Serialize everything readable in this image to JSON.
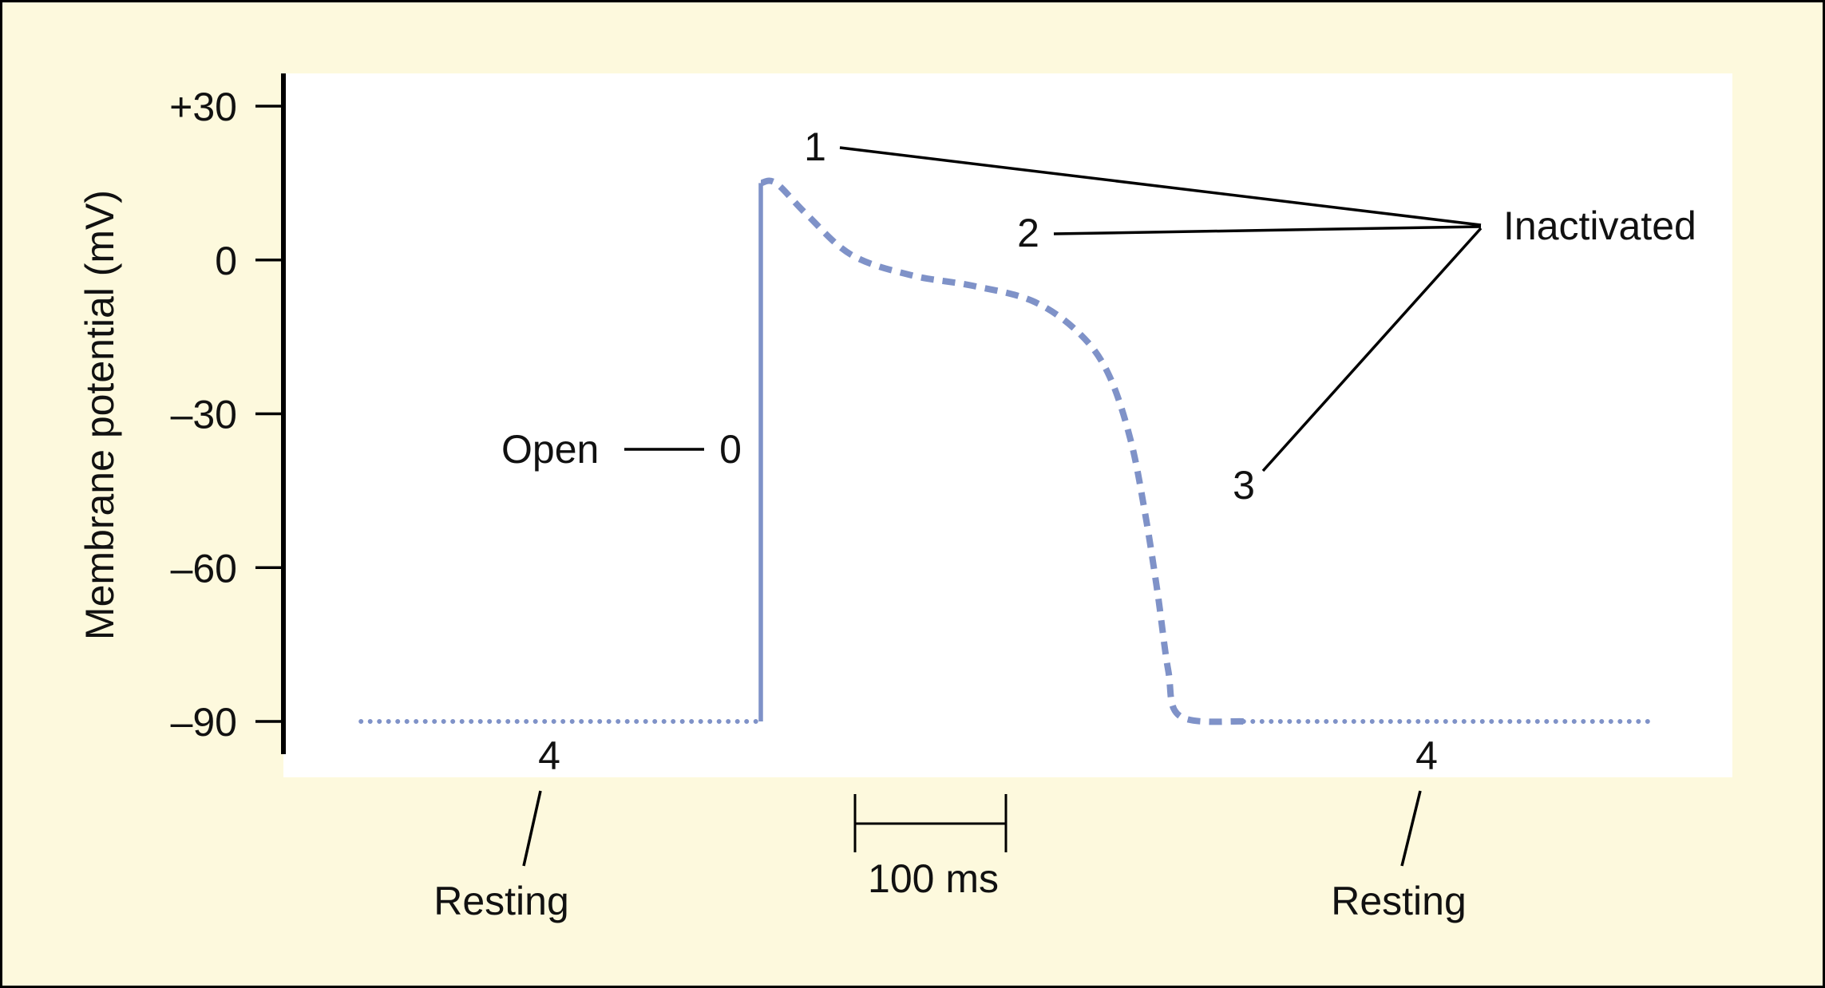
{
  "colors": {
    "background": "#fdf9dd",
    "border": "#000000",
    "plot_area": "#ffffff",
    "trace": "#7f92c8",
    "text": "#111111"
  },
  "chart_data": {
    "type": "line",
    "ylabel": "Membrane potential (mV)",
    "ylim": [
      -100,
      35
    ],
    "y_ticks": [
      "+30",
      "0",
      "–30",
      "–60",
      "–90"
    ],
    "y_tick_values": [
      30,
      0,
      -30,
      -60,
      -90
    ],
    "x_unit": "ms",
    "scale_bar": {
      "label": "100 ms",
      "duration_ms": 100
    },
    "segments": [
      {
        "phase": "4",
        "state": "Resting",
        "style": "dotted",
        "points": [
          [
            -265,
            -90
          ],
          [
            0,
            -90
          ]
        ]
      },
      {
        "phase": "0",
        "state": "Open",
        "style": "solid",
        "points": [
          [
            0,
            -90
          ],
          [
            0,
            15
          ]
        ]
      },
      {
        "phase": "1-2-3",
        "state": "Inactivated",
        "style": "dashed",
        "points": [
          [
            0,
            15
          ],
          [
            10,
            15
          ],
          [
            30,
            9
          ],
          [
            60,
            1
          ],
          [
            100,
            -3
          ],
          [
            140,
            -5
          ],
          [
            180,
            -8
          ],
          [
            210,
            -14
          ],
          [
            230,
            -22
          ],
          [
            245,
            -35
          ],
          [
            255,
            -50
          ],
          [
            263,
            -65
          ],
          [
            270,
            -80
          ],
          [
            278,
            -89
          ],
          [
            320,
            -90
          ]
        ]
      },
      {
        "phase": "4",
        "state": "Resting",
        "style": "dotted",
        "points": [
          [
            320,
            -90
          ],
          [
            590,
            -90
          ]
        ]
      }
    ]
  },
  "annotations": {
    "phase_0": "0",
    "phase_1": "1",
    "phase_2": "2",
    "phase_3": "3",
    "phase_4_left": "4",
    "phase_4_right": "4",
    "open": "Open",
    "inactivated": "Inactivated",
    "resting_left": "Resting",
    "resting_right": "Resting",
    "scale_bar": "100 ms"
  }
}
